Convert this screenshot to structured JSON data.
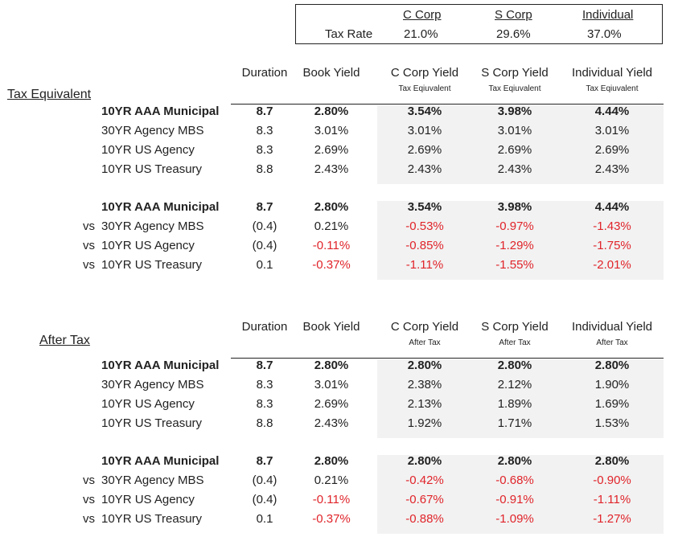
{
  "tax_table": {
    "row_label": "Tax Rate",
    "columns": [
      {
        "name": "C Corp",
        "rate": "21.0%"
      },
      {
        "name": "S Corp",
        "rate": "29.6%"
      },
      {
        "name": "Individual",
        "rate": "37.0%"
      }
    ]
  },
  "sections": [
    {
      "title": "Tax Equivalent",
      "headers": {
        "duration": "Duration",
        "book_yield": "Book Yield",
        "c_corp": "C Corp Yield",
        "s_corp": "S Corp Yield",
        "individual": "Individual Yield",
        "c_corp_sub": "Tax Eqiuvalent",
        "s_corp_sub": "Tax Eqiuvalent",
        "individual_sub": "Tax Eqiuvalent"
      },
      "rows": [
        {
          "prefix": "",
          "name": "10YR AAA Municipal",
          "duration": "8.7",
          "book": "2.80%",
          "c": "3.54%",
          "s": "3.98%",
          "ind": "4.44%"
        },
        {
          "prefix": "",
          "name": "30YR Agency MBS",
          "duration": "8.3",
          "book": "3.01%",
          "c": "3.01%",
          "s": "3.01%",
          "ind": "3.01%"
        },
        {
          "prefix": "",
          "name": "10YR US Agency",
          "duration": "8.3",
          "book": "2.69%",
          "c": "2.69%",
          "s": "2.69%",
          "ind": "2.69%"
        },
        {
          "prefix": "",
          "name": "10YR US Treasury",
          "duration": "8.8",
          "book": "2.43%",
          "c": "2.43%",
          "s": "2.43%",
          "ind": "2.43%"
        }
      ],
      "comparison": [
        {
          "prefix": "",
          "name": "10YR AAA Municipal",
          "duration": "8.7",
          "book": "2.80%",
          "c": "3.54%",
          "s": "3.98%",
          "ind": "4.44%"
        },
        {
          "prefix": "vs",
          "name": "30YR Agency MBS",
          "duration": "(0.4)",
          "book": "0.21%",
          "c": "-0.53%",
          "s": "-0.97%",
          "ind": "-1.43%"
        },
        {
          "prefix": "vs",
          "name": "10YR US Agency",
          "duration": "(0.4)",
          "book": "-0.11%",
          "c": "-0.85%",
          "s": "-1.29%",
          "ind": "-1.75%"
        },
        {
          "prefix": "vs",
          "name": "10YR US Treasury",
          "duration": "0.1",
          "book": "-0.37%",
          "c": "-1.11%",
          "s": "-1.55%",
          "ind": "-2.01%"
        }
      ]
    },
    {
      "title": "After Tax",
      "headers": {
        "duration": "Duration",
        "book_yield": "Book Yield",
        "c_corp": "C Corp Yield",
        "s_corp": "S Corp Yield",
        "individual": "Individual Yield",
        "c_corp_sub": "After Tax",
        "s_corp_sub": "After Tax",
        "individual_sub": "After Tax"
      },
      "rows": [
        {
          "prefix": "",
          "name": "10YR AAA Municipal",
          "duration": "8.7",
          "book": "2.80%",
          "c": "2.80%",
          "s": "2.80%",
          "ind": "2.80%"
        },
        {
          "prefix": "",
          "name": "30YR Agency MBS",
          "duration": "8.3",
          "book": "3.01%",
          "c": "2.38%",
          "s": "2.12%",
          "ind": "1.90%"
        },
        {
          "prefix": "",
          "name": "10YR US Agency",
          "duration": "8.3",
          "book": "2.69%",
          "c": "2.13%",
          "s": "1.89%",
          "ind": "1.69%"
        },
        {
          "prefix": "",
          "name": "10YR US Treasury",
          "duration": "8.8",
          "book": "2.43%",
          "c": "1.92%",
          "s": "1.71%",
          "ind": "1.53%"
        }
      ],
      "comparison": [
        {
          "prefix": "",
          "name": "10YR AAA Municipal",
          "duration": "8.7",
          "book": "2.80%",
          "c": "2.80%",
          "s": "2.80%",
          "ind": "2.80%"
        },
        {
          "prefix": "vs",
          "name": "30YR Agency MBS",
          "duration": "(0.4)",
          "book": "0.21%",
          "c": "-0.42%",
          "s": "-0.68%",
          "ind": "-0.90%"
        },
        {
          "prefix": "vs",
          "name": "10YR US Agency",
          "duration": "(0.4)",
          "book": "-0.11%",
          "c": "-0.67%",
          "s": "-0.91%",
          "ind": "-1.11%"
        },
        {
          "prefix": "vs",
          "name": "10YR US Treasury",
          "duration": "0.1",
          "book": "-0.37%",
          "c": "-0.88%",
          "s": "-1.09%",
          "ind": "-1.27%"
        }
      ]
    }
  ]
}
